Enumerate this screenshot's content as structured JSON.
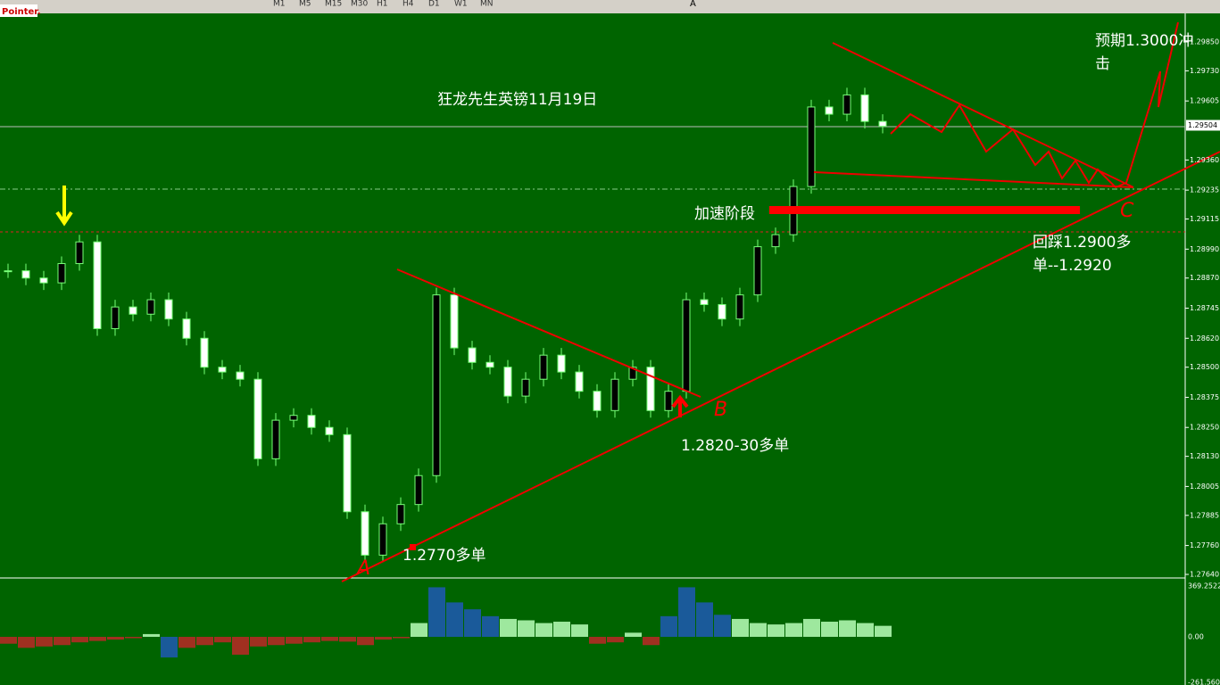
{
  "toolbar": {
    "timeframes": [
      "M1",
      "M5",
      "M15",
      "M30",
      "H1",
      "H4",
      "D1",
      "W1",
      "MN"
    ],
    "text_tool": "A"
  },
  "badge": "Pointer.",
  "price_axis": {
    "labels": [
      "1.29850",
      "1.29730",
      "1.29605",
      "1.29360",
      "1.29235",
      "1.29115",
      "1.28990",
      "1.28870",
      "1.28745",
      "1.28620",
      "1.28500",
      "1.28375",
      "1.28250",
      "1.28130",
      "1.28005",
      "1.27885",
      "1.27760",
      "1.27640"
    ],
    "current": "1.29504"
  },
  "annotations": {
    "title": "狂龙先生英镑11月19日",
    "acceleration": "加速阶段",
    "pullback_line1": "回踩1.2900多",
    "pullback_line2": "单--1.2920",
    "target_line1": "预期1.3000冲",
    "target_line2": "击",
    "entry_b": "1.2820-30多单",
    "entry_a": "1.2770多单",
    "point_a": "A",
    "point_b": "B",
    "point_c": "C"
  },
  "candles": [
    1.289,
    1.2887,
    1.2885,
    1.2893,
    1.2902,
    1.2866,
    1.2875,
    1.2872,
    1.2878,
    1.287,
    1.2862,
    1.285,
    1.2848,
    1.2845,
    1.2812,
    1.2828,
    1.283,
    1.2825,
    1.2822,
    1.279,
    1.2772,
    1.2785,
    1.2793,
    1.2805,
    1.288,
    1.2858,
    1.2852,
    1.285,
    1.2838,
    1.2845,
    1.2855,
    1.2848,
    1.284,
    1.2832,
    1.2845,
    1.285,
    1.2832,
    1.284,
    1.2878,
    1.2876,
    1.287,
    1.288,
    1.29,
    1.2905,
    1.2925,
    1.2958,
    1.2955,
    1.2963,
    1.2952,
    1.295
  ],
  "oscillator": {
    "labels": [
      "369.2522",
      "0.00",
      "-261.560"
    ],
    "values": [
      -50,
      -80,
      -70,
      -60,
      -40,
      -30,
      -20,
      -10,
      20,
      -150,
      -80,
      -60,
      -40,
      -130,
      -70,
      -60,
      -50,
      -40,
      -30,
      -35,
      -60,
      -20,
      -10,
      100,
      360,
      250,
      200,
      150,
      130,
      120,
      100,
      110,
      90,
      -50,
      -40,
      30,
      -60,
      150,
      360,
      250,
      160,
      130,
      100,
      90,
      100,
      130,
      110,
      120,
      100,
      80
    ]
  }
}
